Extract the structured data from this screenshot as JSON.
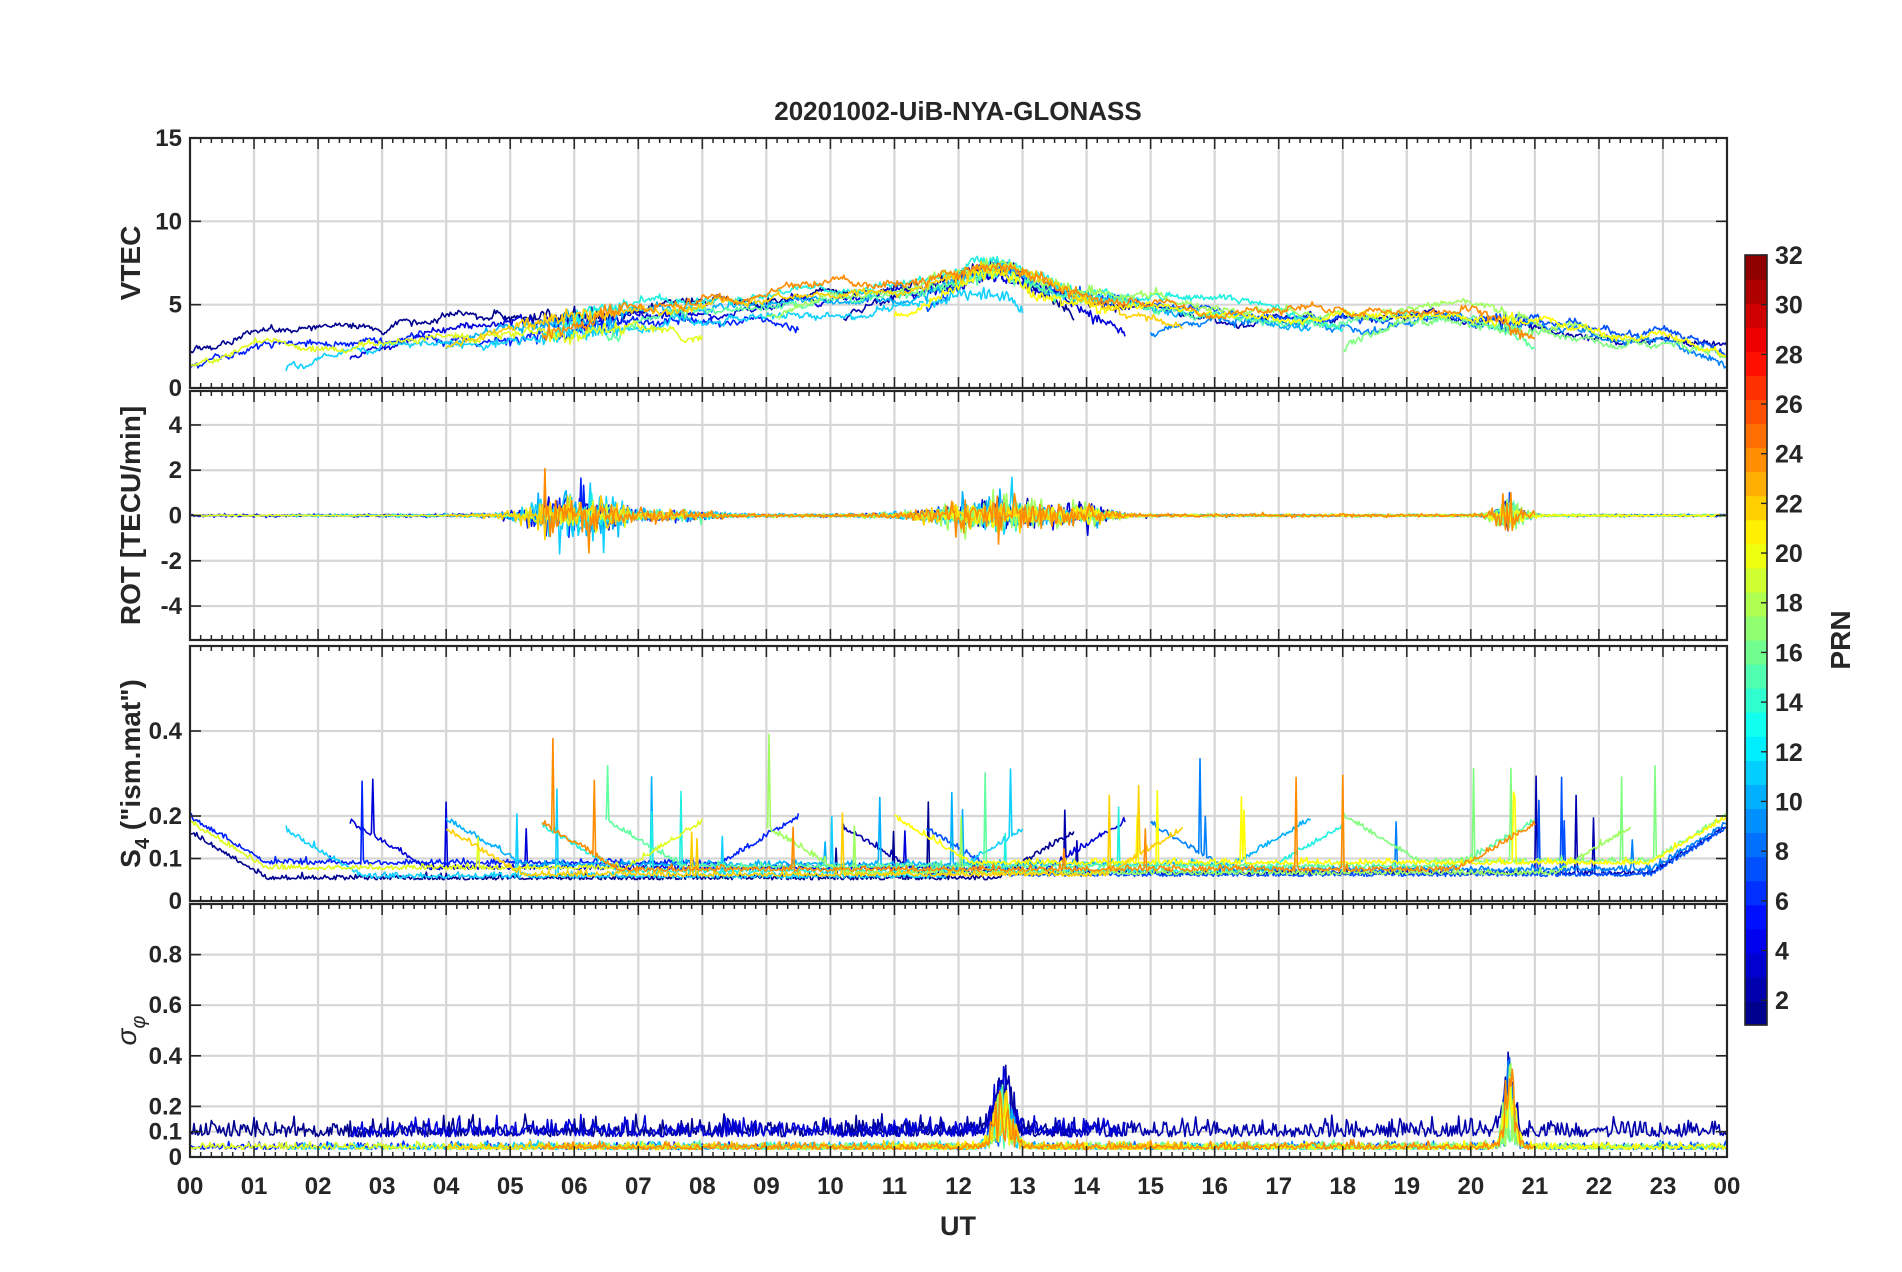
{
  "chart_data": {
    "type": "line",
    "title": "20201002-UiB-NYA-GLONASS",
    "xlabel": "UT",
    "x_tick_labels": [
      "00",
      "01",
      "02",
      "03",
      "04",
      "05",
      "06",
      "07",
      "08",
      "09",
      "10",
      "11",
      "12",
      "13",
      "14",
      "15",
      "16",
      "17",
      "18",
      "19",
      "20",
      "21",
      "22",
      "23",
      "00"
    ],
    "xlim_hours": [
      0,
      24
    ],
    "grid": true,
    "panels": [
      {
        "id": "vtec",
        "ylabel": "VTEC",
        "ylim": [
          0,
          15
        ],
        "y_ticks": [
          0,
          5,
          10,
          15
        ],
        "y_tick_labels": [
          "0",
          "5",
          "10",
          "15"
        ],
        "profile": "vtec"
      },
      {
        "id": "rot",
        "ylabel": "ROT [TECU/min]",
        "ylim": [
          -5.5,
          5.5
        ],
        "y_ticks": [
          -4,
          -2,
          0,
          2,
          4
        ],
        "y_tick_labels": [
          "-4",
          "-2",
          "0",
          "2",
          "4"
        ],
        "profile": "rot"
      },
      {
        "id": "s4",
        "ylabel_main": "S",
        "ylabel_sub": "4",
        "ylabel_rest": " (\"ism.mat\")",
        "ylim": [
          0,
          0.6
        ],
        "y_ticks": [
          0,
          0.1,
          0.2,
          0.4
        ],
        "y_tick_labels": [
          "0",
          "0.1",
          "0.2",
          "0.4"
        ],
        "profile": "s4"
      },
      {
        "id": "sigphi",
        "ylabel_main": "σ",
        "ylabel_sub": "φ",
        "ylim": [
          0,
          1
        ],
        "y_ticks": [
          0,
          0.1,
          0.2,
          0.4,
          0.6,
          0.8
        ],
        "y_tick_labels": [
          "0",
          "0.1",
          "0.2",
          "0.4",
          "0.6",
          "0.8"
        ],
        "profile": "sigphi"
      }
    ],
    "series": [
      {
        "prn": 1,
        "color": "#00008f",
        "start": 0.0,
        "end": 13.8,
        "base": 4.6
      },
      {
        "prn": 2,
        "color": "#0000ad",
        "start": 10.2,
        "end": 24.0,
        "base": 4.0
      },
      {
        "prn": 4,
        "color": "#0000d9",
        "start": 2.5,
        "end": 14.6,
        "base": 3.8
      },
      {
        "prn": 6,
        "color": "#0020ff",
        "start": 0.0,
        "end": 9.5,
        "base": 3.2
      },
      {
        "prn": 8,
        "color": "#0050ff",
        "start": 11.5,
        "end": 24.0,
        "base": 4.4
      },
      {
        "prn": 10,
        "color": "#0080ff",
        "start": 15.0,
        "end": 24.0,
        "base": 3.6
      },
      {
        "prn": 12,
        "color": "#00b0ff",
        "start": 4.0,
        "end": 17.5,
        "base": 4.2
      },
      {
        "prn": 13,
        "color": "#10d0ff",
        "start": 1.5,
        "end": 13.0,
        "base": 2.8
      },
      {
        "prn": 14,
        "color": "#20f0e0",
        "start": 5.5,
        "end": 18.0,
        "base": 5.0
      },
      {
        "prn": 16,
        "color": "#60ffa0",
        "start": 6.5,
        "end": 21.0,
        "base": 4.0
      },
      {
        "prn": 17,
        "color": "#80ff80",
        "start": 18.0,
        "end": 24.0,
        "base": 3.4
      },
      {
        "prn": 18,
        "color": "#a0ff60",
        "start": 9.0,
        "end": 22.5,
        "base": 4.8
      },
      {
        "prn": 20,
        "color": "#e0ff20",
        "start": 0.0,
        "end": 8.0,
        "base": 3.0
      },
      {
        "prn": 21,
        "color": "#ffff00",
        "start": 11.0,
        "end": 24.0,
        "base": 4.1
      },
      {
        "prn": 22,
        "color": "#ffd000",
        "start": 4.0,
        "end": 15.5,
        "base": 4.5
      },
      {
        "prn": 24,
        "color": "#ff8c00",
        "start": 5.5,
        "end": 21.0,
        "base": 4.9
      }
    ],
    "colorbar": {
      "label": "PRN",
      "range": [
        1,
        32
      ],
      "colormap": "jet",
      "levels": 32,
      "tick_values": [
        2,
        4,
        6,
        8,
        10,
        12,
        14,
        16,
        18,
        20,
        22,
        24,
        26,
        28,
        30,
        32
      ],
      "tick_labels": [
        "2",
        "4",
        "6",
        "8",
        "10",
        "12",
        "14",
        "16",
        "18",
        "20",
        "22",
        "24",
        "26",
        "28",
        "30",
        "32"
      ]
    }
  }
}
